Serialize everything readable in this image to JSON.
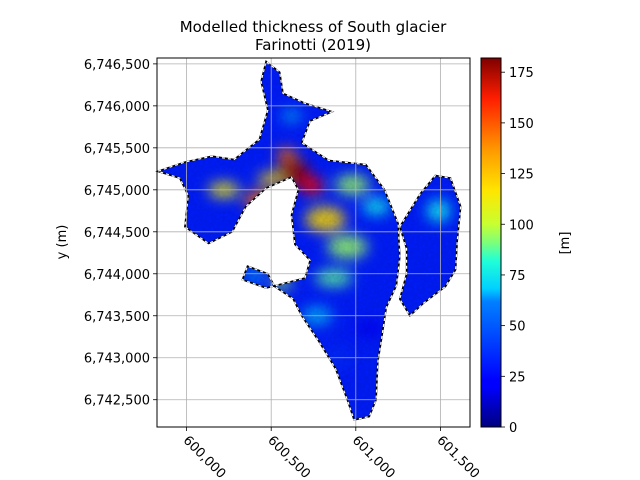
{
  "chart_data": {
    "type": "heatmap",
    "title_line1": "Modelled thickness of South glacier",
    "title_line2": "Farinotti (2019)",
    "xlabel": "",
    "ylabel": "y (m)",
    "colorbar_label": "[m]",
    "colormap": "jet",
    "grid": true,
    "xlim": [
      599825,
      601675
    ],
    "ylim": [
      6742175,
      6746570
    ],
    "x_ticks": [
      600000,
      600500,
      601000,
      601500
    ],
    "x_tick_labels": [
      "600,000",
      "600,500",
      "601,000",
      "601,500"
    ],
    "y_ticks": [
      6742500,
      6743000,
      6743500,
      6744000,
      6744500,
      6745000,
      6745500,
      6746000,
      6746500
    ],
    "y_tick_labels": [
      "6,742,500",
      "6,743,000",
      "6,743,500",
      "6,744,000",
      "6,744,500",
      "6,745,000",
      "6,745,500",
      "6,746,000",
      "6,746,500"
    ],
    "colorbar_range": [
      0,
      182
    ],
    "colorbar_ticks": [
      0,
      25,
      50,
      75,
      100,
      125,
      150,
      175
    ],
    "colorbar_tick_labels": [
      "0",
      "25",
      "50",
      "75",
      "100",
      "125",
      "150",
      "175"
    ],
    "outline_xy": [
      [
        600280,
        6745360
      ],
      [
        600430,
        6745600
      ],
      [
        600480,
        6745950
      ],
      [
        600440,
        6746290
      ],
      [
        600470,
        6746530
      ],
      [
        600550,
        6746400
      ],
      [
        600570,
        6746150
      ],
      [
        600700,
        6746030
      ],
      [
        600860,
        6745930
      ],
      [
        600730,
        6745820
      ],
      [
        600680,
        6745560
      ],
      [
        600840,
        6745350
      ],
      [
        601060,
        6745300
      ],
      [
        601170,
        6745000
      ],
      [
        601250,
        6744600
      ],
      [
        601260,
        6744200
      ],
      [
        601240,
        6743860
      ],
      [
        601180,
        6743600
      ],
      [
        601150,
        6743200
      ],
      [
        601130,
        6742950
      ],
      [
        601120,
        6742500
      ],
      [
        601080,
        6742300
      ],
      [
        600990,
        6742260
      ],
      [
        600950,
        6742500
      ],
      [
        600880,
        6742870
      ],
      [
        600780,
        6743200
      ],
      [
        600680,
        6743500
      ],
      [
        600630,
        6743700
      ],
      [
        600520,
        6743850
      ],
      [
        600480,
        6744000
      ],
      [
        600360,
        6744090
      ],
      [
        600330,
        6743930
      ],
      [
        600470,
        6743830
      ],
      [
        600700,
        6743950
      ],
      [
        600730,
        6744160
      ],
      [
        600640,
        6744350
      ],
      [
        600620,
        6744700
      ],
      [
        600660,
        6745000
      ],
      [
        600620,
        6745150
      ],
      [
        600470,
        6745020
      ],
      [
        600350,
        6744800
      ],
      [
        600270,
        6744500
      ],
      [
        600130,
        6744360
      ],
      [
        599990,
        6744560
      ],
      [
        600010,
        6744930
      ],
      [
        599960,
        6745140
      ],
      [
        599830,
        6745220
      ],
      [
        599990,
        6745330
      ],
      [
        600150,
        6745400
      ]
    ],
    "right_arm_xy": [
      [
        601260,
        6744560
      ],
      [
        601380,
        6744950
      ],
      [
        601470,
        6745170
      ],
      [
        601560,
        6745140
      ],
      [
        601620,
        6744800
      ],
      [
        601600,
        6744400
      ],
      [
        601590,
        6744050
      ],
      [
        601530,
        6743850
      ],
      [
        601400,
        6743650
      ],
      [
        601320,
        6743500
      ],
      [
        601260,
        6743700
      ],
      [
        601300,
        6744000
      ],
      [
        601300,
        6744300
      ]
    ],
    "blobs": [
      {
        "x": 600630,
        "y": 6745210,
        "rx": 95,
        "ry": 160,
        "v": 178
      },
      {
        "x": 600740,
        "y": 6745050,
        "rx": 70,
        "ry": 110,
        "v": 160
      },
      {
        "x": 600590,
        "y": 6745420,
        "rx": 60,
        "ry": 80,
        "v": 140
      },
      {
        "x": 600820,
        "y": 6744650,
        "rx": 120,
        "ry": 150,
        "v": 120
      },
      {
        "x": 600950,
        "y": 6744320,
        "rx": 120,
        "ry": 140,
        "v": 95
      },
      {
        "x": 600870,
        "y": 6743950,
        "rx": 110,
        "ry": 100,
        "v": 85
      },
      {
        "x": 600430,
        "y": 6744870,
        "rx": 90,
        "ry": 120,
        "v": 140
      },
      {
        "x": 600220,
        "y": 6745000,
        "rx": 90,
        "ry": 90,
        "v": 115
      },
      {
        "x": 600500,
        "y": 6745130,
        "rx": 80,
        "ry": 80,
        "v": 120
      },
      {
        "x": 600980,
        "y": 6745060,
        "rx": 100,
        "ry": 120,
        "v": 95
      },
      {
        "x": 601120,
        "y": 6744800,
        "rx": 80,
        "ry": 100,
        "v": 70
      },
      {
        "x": 601490,
        "y": 6744750,
        "rx": 70,
        "ry": 130,
        "v": 70
      },
      {
        "x": 600560,
        "y": 6743880,
        "rx": 70,
        "ry": 60,
        "v": 95
      },
      {
        "x": 600400,
        "y": 6743980,
        "rx": 60,
        "ry": 50,
        "v": 65
      },
      {
        "x": 600770,
        "y": 6743500,
        "rx": 90,
        "ry": 110,
        "v": 55
      },
      {
        "x": 600890,
        "y": 6743000,
        "rx": 90,
        "ry": 140,
        "v": 30
      },
      {
        "x": 601080,
        "y": 6743350,
        "rx": 90,
        "ry": 100,
        "v": 22
      },
      {
        "x": 600620,
        "y": 6745880,
        "rx": 60,
        "ry": 70,
        "v": 55
      }
    ]
  }
}
